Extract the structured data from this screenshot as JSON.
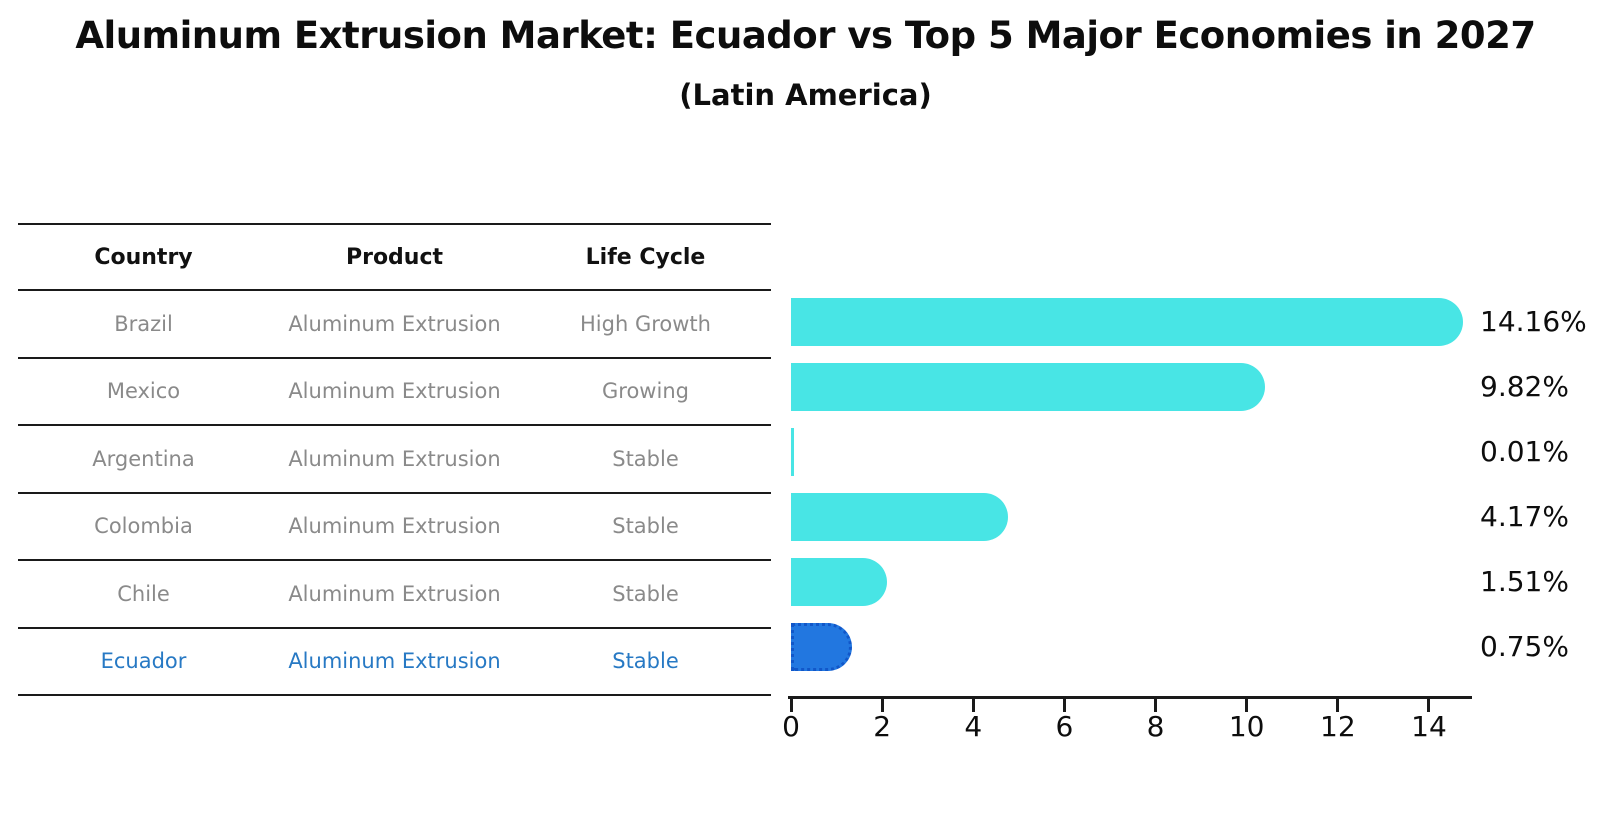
{
  "title": "Aluminum Extrusion Market: Ecuador vs Top 5 Major Economies in 2027",
  "subtitle": "(Latin America)",
  "table": {
    "headers": [
      "Country",
      "Product",
      "Life Cycle"
    ],
    "rows": [
      {
        "country": "Brazil",
        "product": "Aluminum Extrusion",
        "life_cycle": "High Growth"
      },
      {
        "country": "Mexico",
        "product": "Aluminum Extrusion",
        "life_cycle": "Growing"
      },
      {
        "country": "Argentina",
        "product": "Aluminum Extrusion",
        "life_cycle": "Stable"
      },
      {
        "country": "Colombia",
        "product": "Aluminum Extrusion",
        "life_cycle": "Stable"
      },
      {
        "country": "Chile",
        "product": "Aluminum Extrusion",
        "life_cycle": "Stable"
      },
      {
        "country": "Ecuador",
        "product": "Aluminum Extrusion",
        "life_cycle": "Stable"
      }
    ],
    "highlight_row": 5
  },
  "chart_data": {
    "type": "bar",
    "orientation": "horizontal",
    "categories": [
      "Brazil",
      "Mexico",
      "Argentina",
      "Colombia",
      "Chile",
      "Ecuador"
    ],
    "values": [
      14.16,
      9.82,
      0.01,
      4.17,
      1.51,
      0.75
    ],
    "value_labels": [
      "14.16%",
      "9.82%",
      "0.01%",
      "4.17%",
      "1.51%",
      "0.75%"
    ],
    "xlabel": "",
    "ylabel": "",
    "xlim": [
      0,
      14.9
    ],
    "xticks": [
      0,
      2,
      4,
      6,
      8,
      10,
      12,
      14
    ],
    "grid": false,
    "legend": false,
    "bar_color": "#48e5e5",
    "highlight_color": "#2277e0",
    "highlight_border_color": "#1157c9",
    "highlight_index": 5,
    "highlight_text_color": "#2779c4",
    "table_text_color": "#8a8a8a"
  }
}
